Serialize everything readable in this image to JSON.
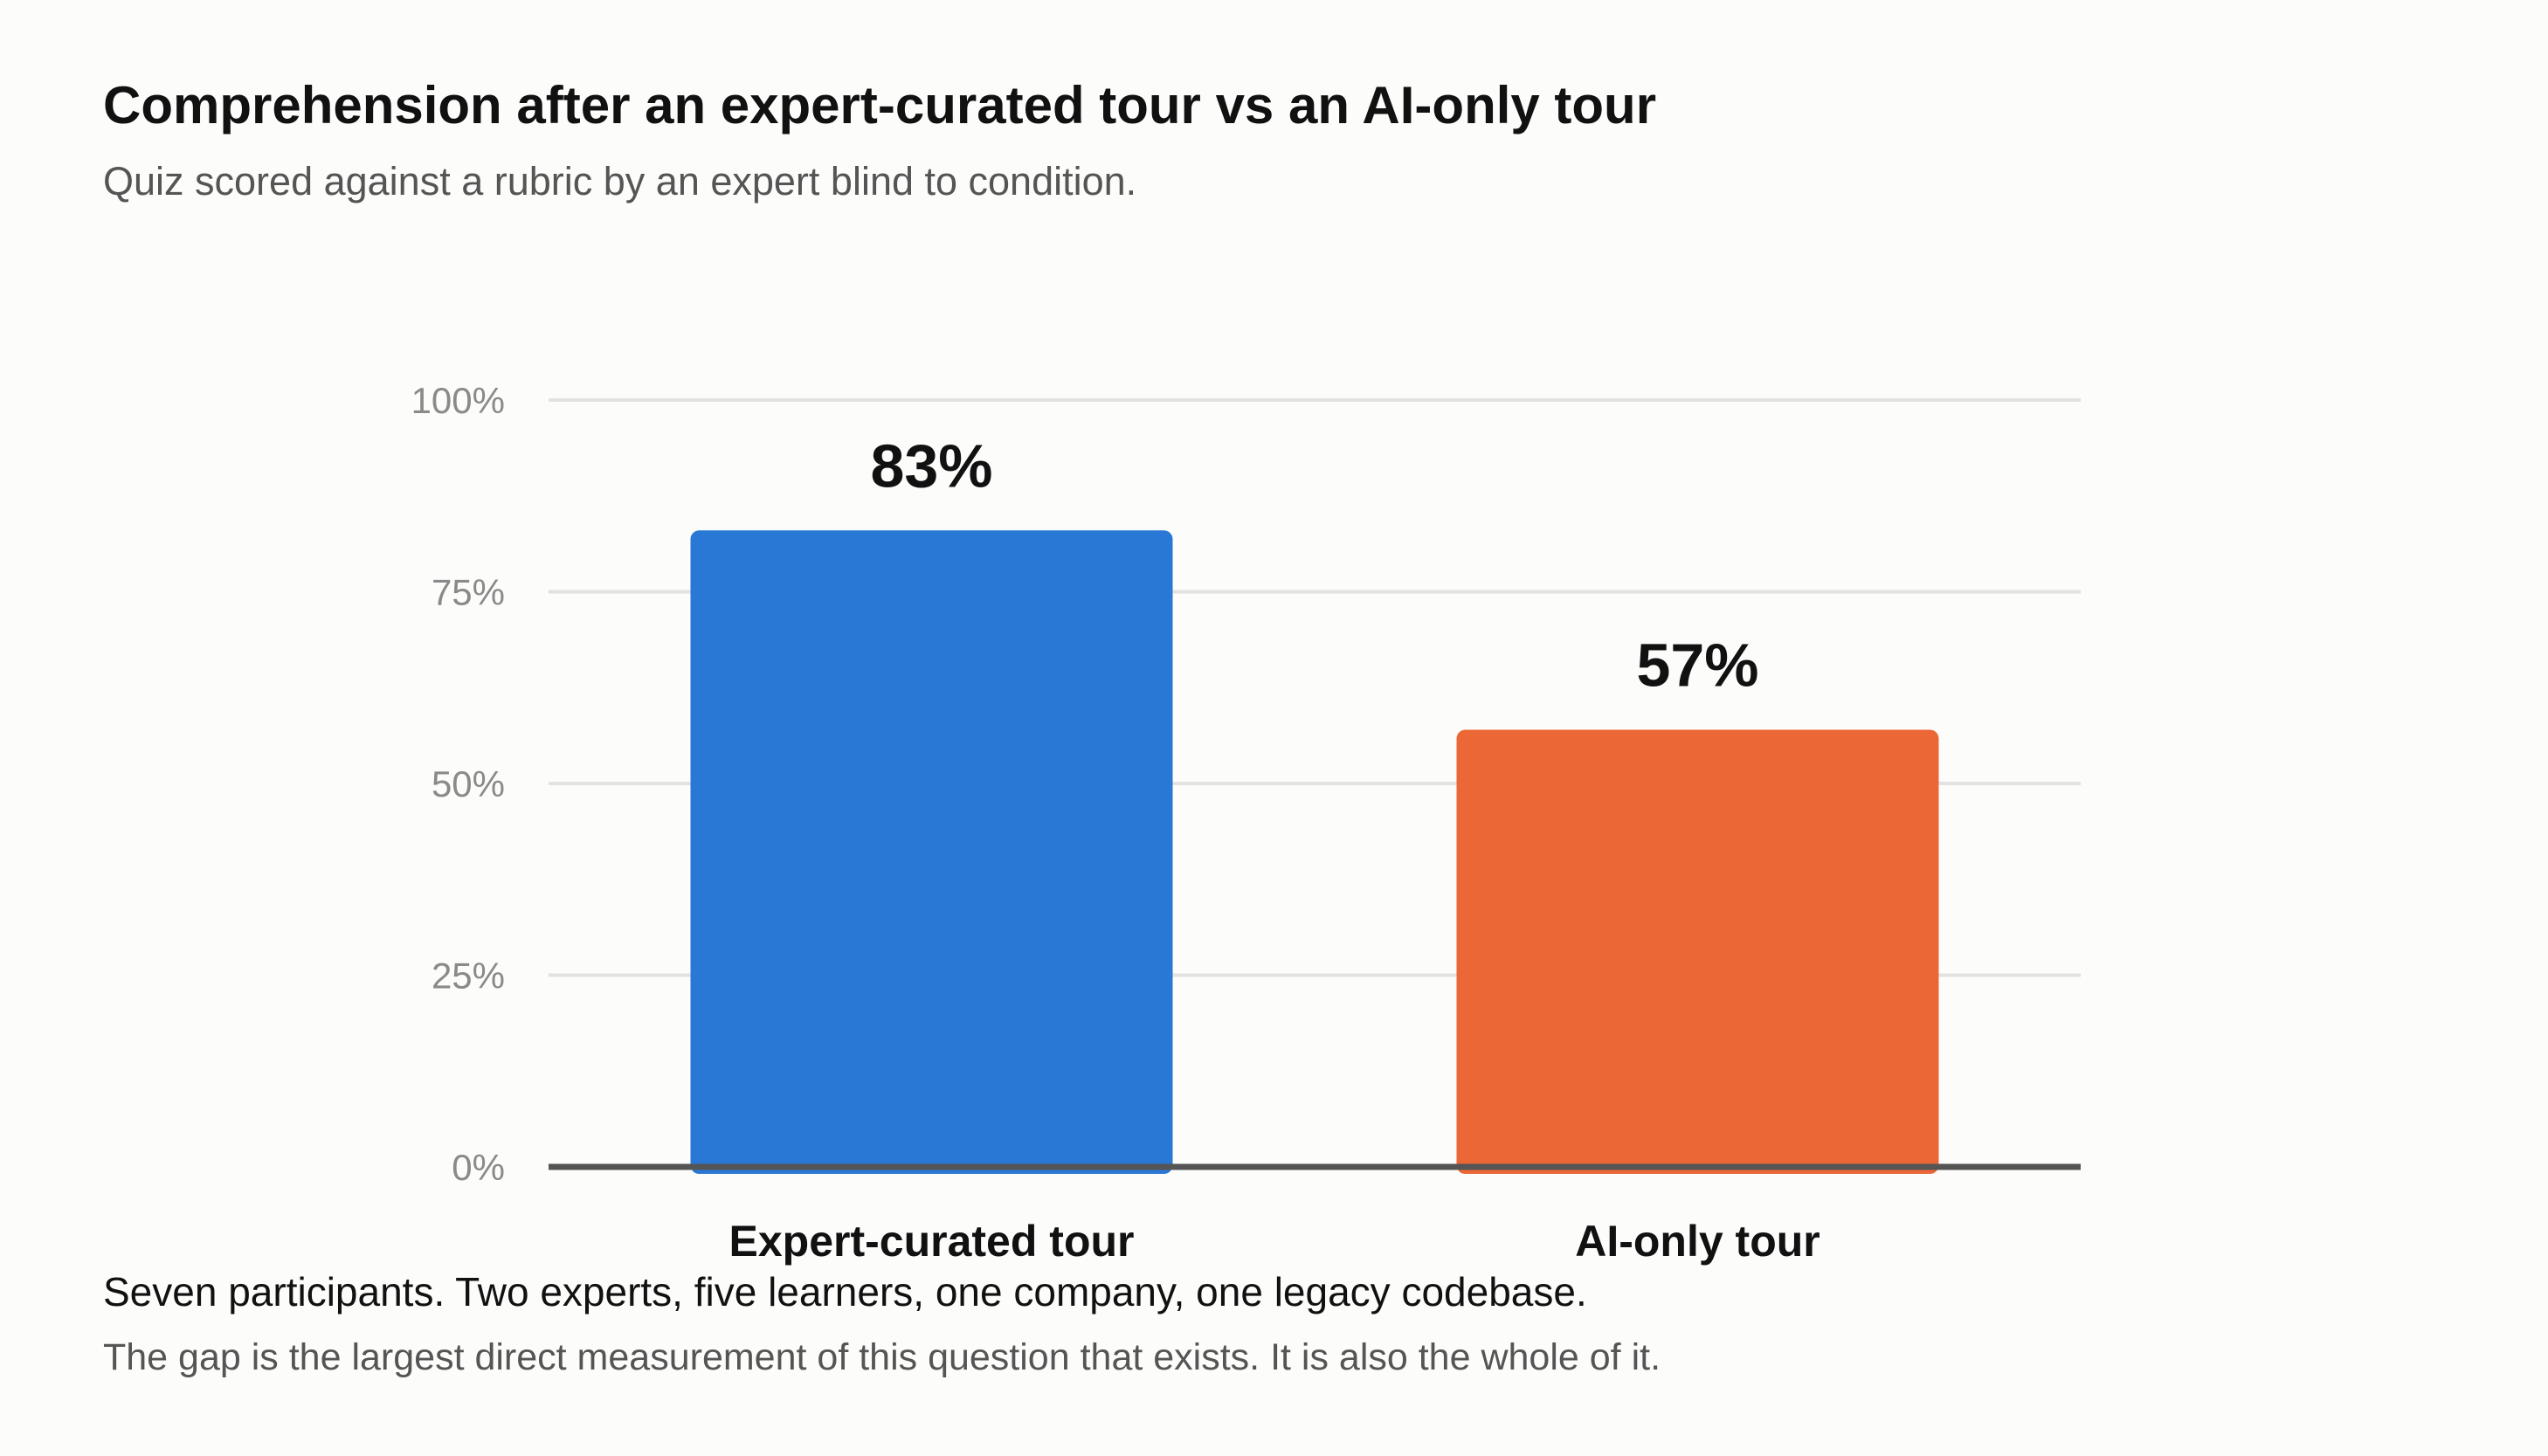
{
  "chart_data": {
    "type": "bar",
    "title": "Comprehension after an expert-curated tour vs an AI-only tour",
    "subtitle": "Quiz scored against a rubric by an expert blind to condition.",
    "categories": [
      "Expert-curated tour",
      "AI-only tour"
    ],
    "values": [
      83,
      57
    ],
    "value_labels": [
      "83%",
      "57%"
    ],
    "bar_colors": [
      "#2a78d6",
      "#eb6836"
    ],
    "ylim": [
      0,
      100
    ],
    "yticks": [
      0,
      25,
      50,
      75,
      100
    ],
    "ytick_labels": [
      "0%",
      "25%",
      "50%",
      "75%",
      "100%"
    ],
    "xlabel": "",
    "ylabel": "",
    "grid": true,
    "legend": "none"
  },
  "notes": {
    "line1": "Seven participants. Two experts, five learners, one company, one legacy codebase.",
    "line2": "The gap is the largest direct measurement of this question that exists. It is also the whole of it."
  }
}
